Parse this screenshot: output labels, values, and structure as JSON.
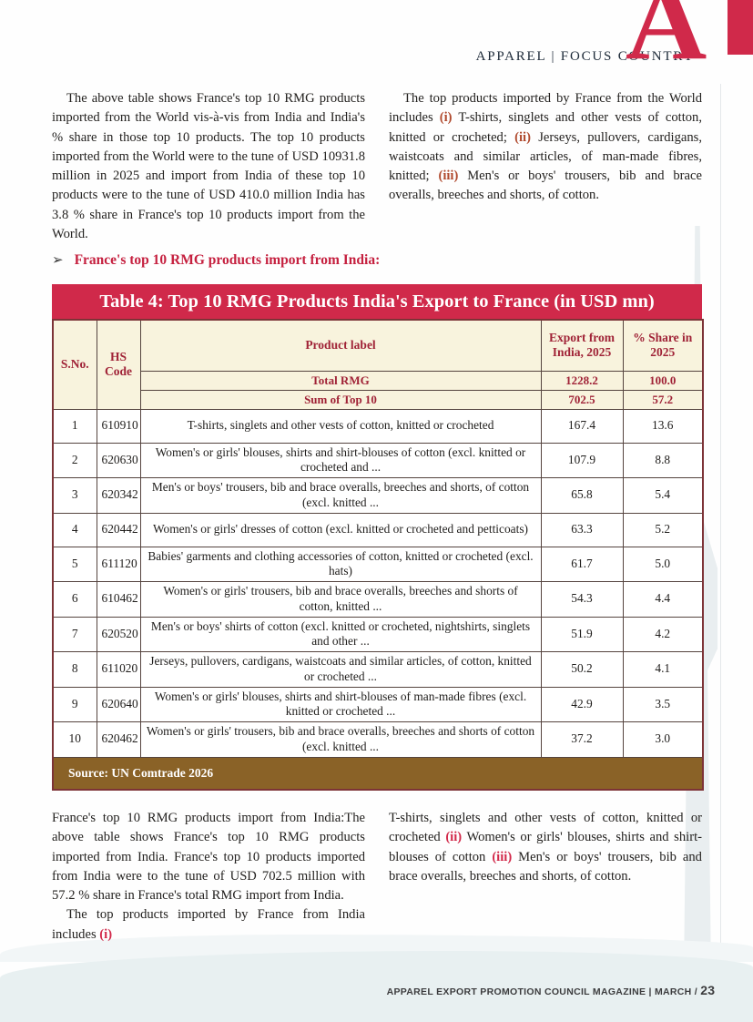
{
  "header": {
    "section_label": "APPAREL | FOCUS COUNTRY",
    "logo_letter": "A"
  },
  "colors": {
    "crimson_banner": "#d0294a",
    "dark_red_text": "#a02337",
    "cream_header": "#f8f3dd",
    "brown_source_bar": "#8a6227",
    "marker_red_top": "#b04a2e",
    "marker_red_bottom": "#d2294a"
  },
  "intro": {
    "left": "The above table shows France's top 10 RMG products imported from the World vis-à-vis from India and India's % share in those top 10 products. The top 10 products imported from the World were to the tune of USD 10931.8 million in 2025 and import from India of these top 10 products were to the tune of USD 410.0 million India has 3.8 % share in France's top 10 products import from the World.",
    "right_segments": [
      {
        "t": "The top products imported by France from the World includes "
      },
      {
        "t": "(i)",
        "red": true
      },
      {
        "t": " T-shirts, singlets and other vests of cotton, knitted or crocheted; "
      },
      {
        "t": "(ii)",
        "red": true
      },
      {
        "t": " Jerseys, pullovers, cardigans, waistcoats and similar articles, of man-made fibres, knitted; "
      },
      {
        "t": "(iii)",
        "red": true
      },
      {
        "t": " Men's or boys' trousers, bib and brace overalls, breeches and shorts, of cotton."
      }
    ]
  },
  "section": {
    "bullet": "➢",
    "heading": "France's top 10 RMG products import from India:"
  },
  "table": {
    "title": "Table 4: Top 10 RMG Products India's Export to France (in USD mn)",
    "col_sno": "S.No.",
    "col_hs": "HS Code",
    "col_product": "Product label",
    "col_export": "Export from India, 2025",
    "col_share": "% Share in 2025",
    "summary": [
      {
        "label": "Total RMG",
        "export": "1228.2",
        "share": "100.0"
      },
      {
        "label": "Sum of Top 10",
        "export": "702.5",
        "share": "57.2"
      }
    ],
    "rows": [
      {
        "sno": "1",
        "hs": "610910",
        "label": "T-shirts, singlets and other vests of cotton, knitted or crocheted",
        "export": "167.4",
        "share": "13.6"
      },
      {
        "sno": "2",
        "hs": "620630",
        "label": "Women's or girls' blouses, shirts and shirt-blouses of cotton (excl. knitted or crocheted and ...",
        "export": "107.9",
        "share": "8.8"
      },
      {
        "sno": "3",
        "hs": "620342",
        "label": "Men's or boys' trousers, bib and brace overalls, breeches and shorts, of cotton (excl. knitted ...",
        "export": "65.8",
        "share": "5.4"
      },
      {
        "sno": "4",
        "hs": "620442",
        "label": "Women's or girls' dresses of cotton (excl. knitted or crocheted and petticoats)",
        "export": "63.3",
        "share": "5.2"
      },
      {
        "sno": "5",
        "hs": "611120",
        "label": "Babies' garments and clothing accessories of cotton, knitted or crocheted (excl. hats)",
        "export": "61.7",
        "share": "5.0"
      },
      {
        "sno": "6",
        "hs": "610462",
        "label": "Women's or girls' trousers, bib and brace overalls, breeches and shorts of cotton, knitted ...",
        "export": "54.3",
        "share": "4.4"
      },
      {
        "sno": "7",
        "hs": "620520",
        "label": "Men's or boys' shirts of cotton (excl. knitted or crocheted, nightshirts, singlets and other ...",
        "export": "51.9",
        "share": "4.2"
      },
      {
        "sno": "8",
        "hs": "611020",
        "label": "Jerseys, pullovers, cardigans, waistcoats and similar articles, of cotton, knitted or crocheted ...",
        "export": "50.2",
        "share": "4.1"
      },
      {
        "sno": "9",
        "hs": "620640",
        "label": "Women's or girls' blouses, shirts and shirt-blouses of man-made fibres (excl. knitted or crocheted ...",
        "export": "42.9",
        "share": "3.5"
      },
      {
        "sno": "10",
        "hs": "620462",
        "label": "Women's or girls' trousers, bib and brace overalls, breeches and shorts of cotton (excl. knitted ...",
        "export": "37.2",
        "share": "3.0"
      }
    ],
    "source": "Source: UN Comtrade 2026"
  },
  "outro": {
    "left_p1": "France's top 10 RMG products import from India:The above table shows France's top 10 RMG products imported from India. France's top 10 products imported from India were to the tune of USD 702.5 million with 57.2 % share in France's total RMG import from India.",
    "left_p2_segments": [
      {
        "t": "The top products imported by France from India includes "
      },
      {
        "t": "(i)",
        "red": true
      }
    ],
    "right_segments": [
      {
        "t": "T-shirts, singlets and other vests of cotton, knitted or crocheted "
      },
      {
        "t": "(ii)",
        "red": true
      },
      {
        "t": " Women's or girls' blouses, shirts and shirt-blouses of cotton "
      },
      {
        "t": "(iii)",
        "red": true
      },
      {
        "t": " Men's or boys' trousers, bib and brace overalls, breeches and shorts, of cotton."
      }
    ]
  },
  "footer": {
    "label": "APPAREL EXPORT PROMOTION COUNCIL MAGAZINE | MARCH / ",
    "page_number": "23"
  }
}
